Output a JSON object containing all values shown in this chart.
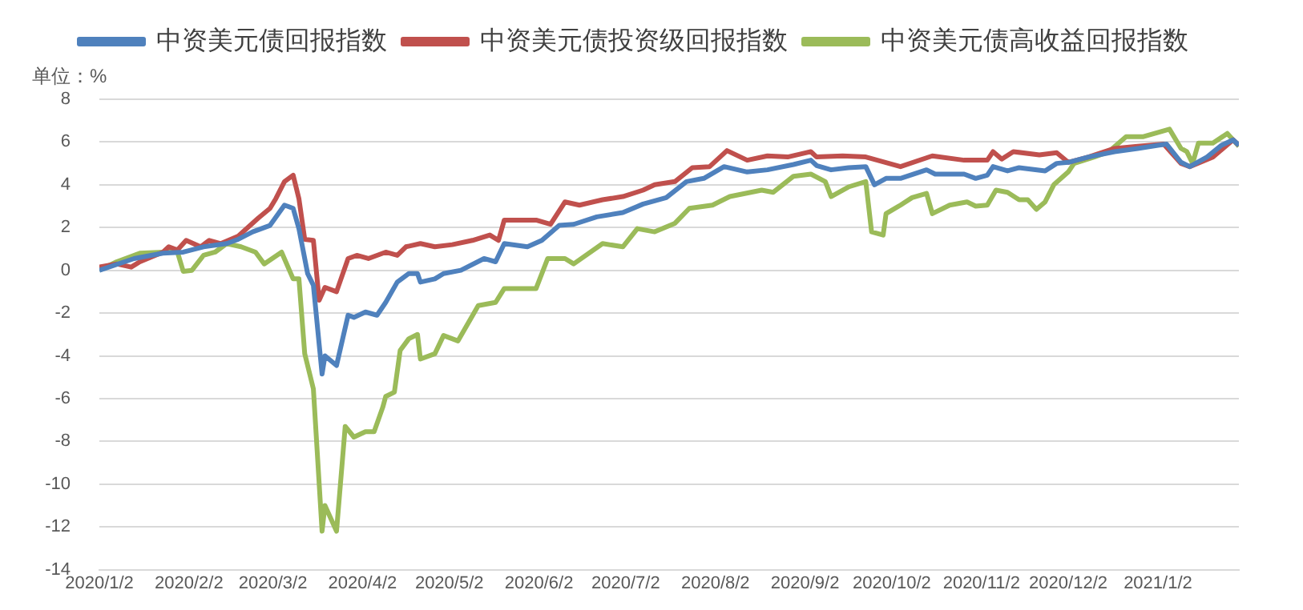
{
  "chart_data": {
    "type": "line",
    "ylabel": "单位：%",
    "legend": "top",
    "grid": "y",
    "xlim": [
      "2020-01-02",
      "2021-01-30"
    ],
    "xticks": [
      {
        "value": "2020-01-02",
        "label": "2020/1/2"
      },
      {
        "value": "2020-02-02",
        "label": "2020/2/2"
      },
      {
        "value": "2020-03-02",
        "label": "2020/3/2"
      },
      {
        "value": "2020-04-02",
        "label": "2020/4/2"
      },
      {
        "value": "2020-05-02",
        "label": "2020/5/2"
      },
      {
        "value": "2020-06-02",
        "label": "2020/6/2"
      },
      {
        "value": "2020-07-02",
        "label": "2020/7/2"
      },
      {
        "value": "2020-08-02",
        "label": "2020/8/2"
      },
      {
        "value": "2020-09-02",
        "label": "2020/9/2"
      },
      {
        "value": "2020-10-02",
        "label": "2020/10/2"
      },
      {
        "value": "2020-11-02",
        "label": "2020/11/2"
      },
      {
        "value": "2020-12-02",
        "label": "2020/12/2"
      },
      {
        "value": "2021-01-02",
        "label": "2021/1/2"
      }
    ],
    "ylim": [
      -14,
      8
    ],
    "yticks": [
      -14,
      -12,
      -10,
      -8,
      -6,
      -4,
      -2,
      0,
      2,
      4,
      6,
      8
    ],
    "series": [
      {
        "name": "中资美元债回报指数",
        "color": "#4f81bd",
        "x": [
          "2020-01-02",
          "2020-01-14",
          "2020-01-24",
          "2020-01-31",
          "2020-02-07",
          "2020-02-15",
          "2020-02-19",
          "2020-02-24",
          "2020-03-01",
          "2020-03-06",
          "2020-03-09",
          "2020-03-11",
          "2020-03-14",
          "2020-03-16",
          "2020-03-19",
          "2020-03-20",
          "2020-03-24",
          "2020-03-28",
          "2020-03-30",
          "2020-04-03",
          "2020-04-07",
          "2020-04-10",
          "2020-04-14",
          "2020-04-18",
          "2020-04-21",
          "2020-04-22",
          "2020-04-27",
          "2020-04-30",
          "2020-05-06",
          "2020-05-14",
          "2020-05-18",
          "2020-05-21",
          "2020-05-29",
          "2020-06-03",
          "2020-06-09",
          "2020-06-14",
          "2020-06-22",
          "2020-07-01",
          "2020-07-08",
          "2020-07-16",
          "2020-07-23",
          "2020-07-29",
          "2020-08-05",
          "2020-08-13",
          "2020-08-20",
          "2020-08-29",
          "2020-09-04",
          "2020-09-06",
          "2020-09-11",
          "2020-09-17",
          "2020-09-23",
          "2020-09-26",
          "2020-09-30",
          "2020-10-05",
          "2020-10-14",
          "2020-10-17",
          "2020-10-27",
          "2020-10-31",
          "2020-11-04",
          "2020-11-06",
          "2020-11-11",
          "2020-11-15",
          "2020-11-24",
          "2020-11-28",
          "2020-12-02",
          "2020-12-09",
          "2020-12-18",
          "2020-12-26",
          "2021-01-02",
          "2021-01-05",
          "2021-01-10",
          "2021-01-13",
          "2021-01-19",
          "2021-01-24",
          "2021-01-28",
          "2021-01-30"
        ],
        "values": [
          0,
          0.55,
          0.8,
          0.85,
          1.1,
          1.25,
          1.45,
          1.8,
          2.1,
          3.05,
          2.9,
          1.95,
          -0.15,
          -0.7,
          -4.85,
          -4.0,
          -4.45,
          -2.1,
          -2.2,
          -1.95,
          -2.1,
          -1.5,
          -0.55,
          -0.15,
          -0.15,
          -0.55,
          -0.4,
          -0.15,
          0,
          0.55,
          0.4,
          1.25,
          1.1,
          1.4,
          2.1,
          2.15,
          2.5,
          2.7,
          3.1,
          3.4,
          4.15,
          4.3,
          4.85,
          4.6,
          4.7,
          4.95,
          5.15,
          4.9,
          4.7,
          4.8,
          4.85,
          4.0,
          4.3,
          4.3,
          4.7,
          4.5,
          4.5,
          4.3,
          4.45,
          4.85,
          4.65,
          4.8,
          4.65,
          5.0,
          5.05,
          5.3,
          5.55,
          5.7,
          5.85,
          5.9,
          5.05,
          4.85,
          5.3,
          5.85,
          6.1,
          5.85
        ]
      },
      {
        "name": "中资美元债投资级回报指数",
        "color": "#c0504d",
        "x": [
          "2020-01-02",
          "2020-01-08",
          "2020-01-13",
          "2020-01-16",
          "2020-01-24",
          "2020-01-26",
          "2020-01-29",
          "2020-02-01",
          "2020-02-06",
          "2020-02-09",
          "2020-02-13",
          "2020-02-19",
          "2020-02-26",
          "2020-03-01",
          "2020-03-03",
          "2020-03-06",
          "2020-03-09",
          "2020-03-11",
          "2020-03-13",
          "2020-03-16",
          "2020-03-18",
          "2020-03-20",
          "2020-03-24",
          "2020-03-28",
          "2020-03-31",
          "2020-04-04",
          "2020-04-10",
          "2020-04-14",
          "2020-04-17",
          "2020-04-22",
          "2020-04-27",
          "2020-05-03",
          "2020-05-10",
          "2020-05-16",
          "2020-05-19",
          "2020-05-21",
          "2020-06-01",
          "2020-06-06",
          "2020-06-11",
          "2020-06-16",
          "2020-06-24",
          "2020-07-01",
          "2020-07-08",
          "2020-07-12",
          "2020-07-19",
          "2020-07-25",
          "2020-07-31",
          "2020-08-06",
          "2020-08-13",
          "2020-08-20",
          "2020-08-27",
          "2020-09-04",
          "2020-09-06",
          "2020-09-15",
          "2020-09-23",
          "2020-10-05",
          "2020-10-16",
          "2020-10-27",
          "2020-11-04",
          "2020-11-06",
          "2020-11-09",
          "2020-11-13",
          "2020-11-22",
          "2020-11-28",
          "2020-12-02",
          "2020-12-09",
          "2020-12-18",
          "2020-12-26",
          "2021-01-04",
          "2021-01-10",
          "2021-01-13",
          "2021-01-21",
          "2021-01-28",
          "2021-01-30"
        ],
        "values": [
          0.15,
          0.3,
          0.15,
          0.4,
          0.85,
          1.1,
          0.95,
          1.4,
          1.1,
          1.4,
          1.25,
          1.6,
          2.45,
          2.9,
          3.35,
          4.15,
          4.45,
          3.35,
          1.45,
          1.4,
          -1.4,
          -0.8,
          -1.0,
          0.55,
          0.7,
          0.55,
          0.85,
          0.7,
          1.1,
          1.25,
          1.1,
          1.2,
          1.4,
          1.65,
          1.4,
          2.35,
          2.35,
          2.15,
          3.2,
          3.05,
          3.3,
          3.45,
          3.75,
          4.0,
          4.15,
          4.8,
          4.85,
          5.6,
          5.15,
          5.35,
          5.3,
          5.55,
          5.3,
          5.35,
          5.3,
          4.85,
          5.35,
          5.15,
          5.15,
          5.55,
          5.2,
          5.55,
          5.4,
          5.5,
          5.05,
          5.3,
          5.7,
          5.8,
          5.9,
          5.0,
          4.85,
          5.3,
          6.1,
          5.85
        ]
      },
      {
        "name": "中资美元债高收益回报指数",
        "color": "#9bbb59",
        "x": [
          "2020-01-02",
          "2020-01-08",
          "2020-01-16",
          "2020-01-24",
          "2020-01-29",
          "2020-01-31",
          "2020-02-03",
          "2020-02-07",
          "2020-02-11",
          "2020-02-15",
          "2020-02-20",
          "2020-02-25",
          "2020-02-28",
          "2020-03-05",
          "2020-03-09",
          "2020-03-11",
          "2020-03-13",
          "2020-03-16",
          "2020-03-19",
          "2020-03-20",
          "2020-03-24",
          "2020-03-27",
          "2020-03-30",
          "2020-04-03",
          "2020-04-06",
          "2020-04-09",
          "2020-04-10",
          "2020-04-13",
          "2020-04-15",
          "2020-04-18",
          "2020-04-21",
          "2020-04-22",
          "2020-04-27",
          "2020-04-30",
          "2020-05-05",
          "2020-05-12",
          "2020-05-18",
          "2020-05-21",
          "2020-06-01",
          "2020-06-05",
          "2020-06-11",
          "2020-06-14",
          "2020-06-24",
          "2020-07-01",
          "2020-07-06",
          "2020-07-12",
          "2020-07-19",
          "2020-07-24",
          "2020-08-01",
          "2020-08-07",
          "2020-08-18",
          "2020-08-22",
          "2020-08-29",
          "2020-09-04",
          "2020-09-09",
          "2020-09-11",
          "2020-09-17",
          "2020-09-23",
          "2020-09-25",
          "2020-09-29",
          "2020-09-30",
          "2020-10-05",
          "2020-10-09",
          "2020-10-14",
          "2020-10-16",
          "2020-10-22",
          "2020-10-28",
          "2020-10-31",
          "2020-11-04",
          "2020-11-07",
          "2020-11-11",
          "2020-11-15",
          "2020-11-18",
          "2020-11-21",
          "2020-11-24",
          "2020-11-27",
          "2020-12-02",
          "2020-12-04",
          "2020-12-11",
          "2020-12-16",
          "2020-12-22",
          "2020-12-28",
          "2021-01-06",
          "2021-01-10",
          "2021-01-12",
          "2021-01-14",
          "2021-01-16",
          "2021-01-21",
          "2021-01-26",
          "2021-01-30"
        ],
        "values": [
          0,
          0.4,
          0.8,
          0.85,
          0.85,
          -0.05,
          0,
          0.7,
          0.85,
          1.25,
          1.1,
          0.85,
          0.3,
          0.85,
          -0.4,
          -0.4,
          -3.9,
          -5.55,
          -12.2,
          -11.0,
          -12.2,
          -7.3,
          -7.8,
          -7.55,
          -7.55,
          -6.4,
          -5.9,
          -5.7,
          -3.75,
          -3.2,
          -3.0,
          -4.15,
          -3.9,
          -3.05,
          -3.3,
          -1.65,
          -1.5,
          -0.85,
          -0.85,
          0.55,
          0.55,
          0.3,
          1.25,
          1.1,
          1.95,
          1.8,
          2.2,
          2.9,
          3.05,
          3.45,
          3.75,
          3.65,
          4.4,
          4.5,
          4.15,
          3.45,
          3.9,
          4.15,
          1.8,
          1.65,
          2.65,
          3.05,
          3.4,
          3.6,
          2.65,
          3.05,
          3.2,
          3.0,
          3.05,
          3.75,
          3.65,
          3.3,
          3.3,
          2.85,
          3.2,
          4.0,
          4.6,
          5.0,
          5.3,
          5.55,
          6.25,
          6.25,
          6.6,
          5.7,
          5.55,
          5.0,
          5.95,
          5.95,
          6.4,
          5.8
        ]
      }
    ]
  }
}
